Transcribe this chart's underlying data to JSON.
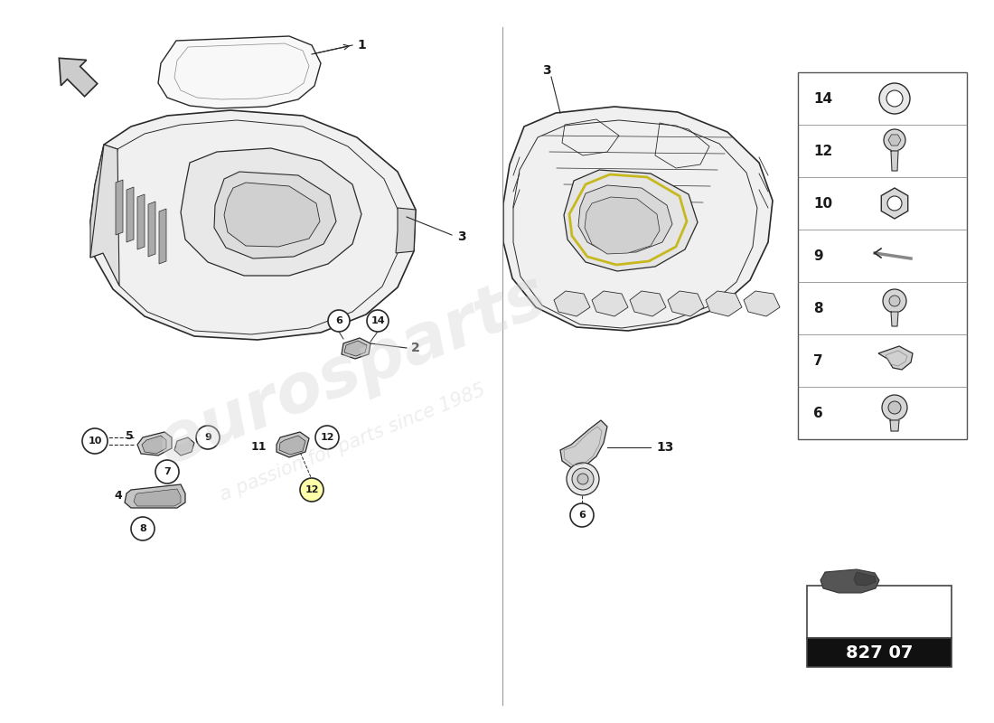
{
  "background_color": "#ffffff",
  "line_color": "#2a2a2a",
  "badge_number": "827 07",
  "watermark_text": "eurosparts",
  "watermark_sub": "a passion for parts since 1985",
  "part_items_right": [
    {
      "num": "14"
    },
    {
      "num": "12"
    },
    {
      "num": "10"
    },
    {
      "num": "9"
    },
    {
      "num": "8"
    },
    {
      "num": "7"
    },
    {
      "num": "6"
    }
  ]
}
